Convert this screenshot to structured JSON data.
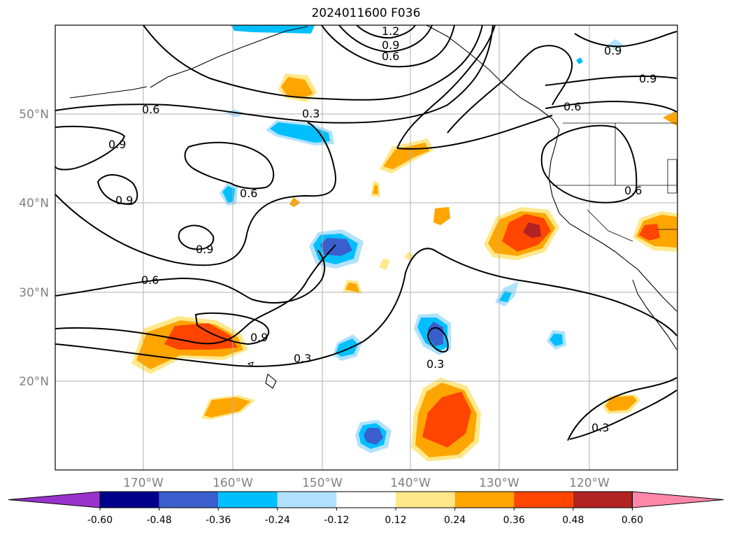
{
  "title": "2024011600 F036",
  "lat_labels": [
    "50°N",
    "40°N",
    "30°N",
    "20°N"
  ],
  "lon_labels": [
    "170°W",
    "160°W",
    "150°W",
    "140°W",
    "130°W",
    "120°W"
  ],
  "contour_labels": [
    "1.2",
    "0.9",
    "0.6",
    "0.6",
    "0.3",
    "0.9",
    "0.9",
    "0.9",
    "0.6",
    "0.9",
    "0.6",
    "0.6",
    "0.9",
    "0.6",
    "0.9",
    "0.3",
    "0.3",
    "0.3"
  ],
  "colorbar": {
    "ticks": [
      "-0.60",
      "-0.48",
      "-0.36",
      "-0.24",
      "-0.12",
      "0.12",
      "0.24",
      "0.36",
      "0.48",
      "0.60"
    ],
    "colors": [
      "#9932cc",
      "#00008b",
      "#3a5fcd",
      "#00bfff",
      "#b0e2ff",
      "#ffffff",
      "#ffe88a",
      "#ffa500",
      "#ff4500",
      "#b22222",
      "#ff88aa"
    ]
  },
  "colors": {
    "grid": "#b0b0b0",
    "label_grey": "#808080",
    "contour": "#000000"
  }
}
